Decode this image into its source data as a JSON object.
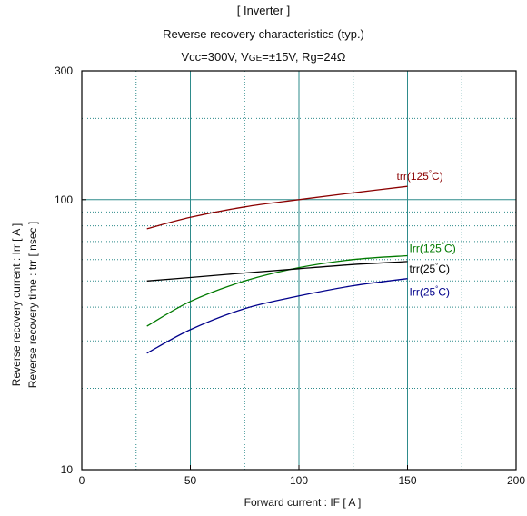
{
  "title": {
    "line1": "[ Inverter ]",
    "line2": "Reverse recovery characteristics  (typ.)",
    "line3_parts": [
      "Vcc=300V, V",
      "GE",
      "=±15V, Rg=24Ω"
    ]
  },
  "colors": {
    "trr_125": "#8b0000",
    "irr_125": "#007a00",
    "trr_25": "#000000",
    "irr_25": "#00008b",
    "grid": "#2e8b8b",
    "axis": "#000000"
  },
  "chart_data": {
    "type": "line",
    "xlabel": "Forward current  :  IF  [ A ]",
    "ylabel_lines": [
      "Reverse recovery current  :  Irr  [ A ]",
      "Reverse recovery time  :  trr  [ nsec ]"
    ],
    "xlim": [
      0,
      200
    ],
    "ylim": [
      10,
      300
    ],
    "y_scale": "log",
    "x_ticks": [
      0,
      50,
      100,
      150,
      200
    ],
    "x_tick_labels": [
      "0",
      "50",
      "100",
      "150",
      "200"
    ],
    "y_ticks": [
      10,
      100,
      300
    ],
    "y_tick_labels": [
      "10",
      "100",
      "300"
    ],
    "grid": true,
    "series": [
      {
        "name": "trr(125°C)",
        "name_parts": [
          "trr(125",
          "°",
          "C)"
        ],
        "color_key": "trr_125",
        "x": [
          30,
          50,
          75,
          100,
          125,
          150
        ],
        "y": [
          78,
          86,
          94,
          100,
          106,
          112
        ]
      },
      {
        "name": "Irr(125°C)",
        "name_parts": [
          "Irr(125",
          "°",
          "C)"
        ],
        "color_key": "irr_125",
        "x": [
          30,
          50,
          75,
          100,
          125,
          150
        ],
        "y": [
          34,
          42,
          50,
          56,
          60,
          62
        ]
      },
      {
        "name": "trr(25°C)",
        "name_parts": [
          "trr(25",
          "°",
          "C)"
        ],
        "color_key": "trr_25",
        "x": [
          30,
          50,
          75,
          100,
          125,
          150
        ],
        "y": [
          50,
          51.5,
          53.5,
          55.5,
          57.5,
          59
        ]
      },
      {
        "name": "Irr(25°C)",
        "name_parts": [
          "Irr(25",
          "°",
          "C)"
        ],
        "color_key": "irr_25",
        "x": [
          30,
          50,
          75,
          100,
          125,
          150
        ],
        "y": [
          27,
          33,
          39.5,
          44,
          48,
          51
        ]
      }
    ]
  }
}
